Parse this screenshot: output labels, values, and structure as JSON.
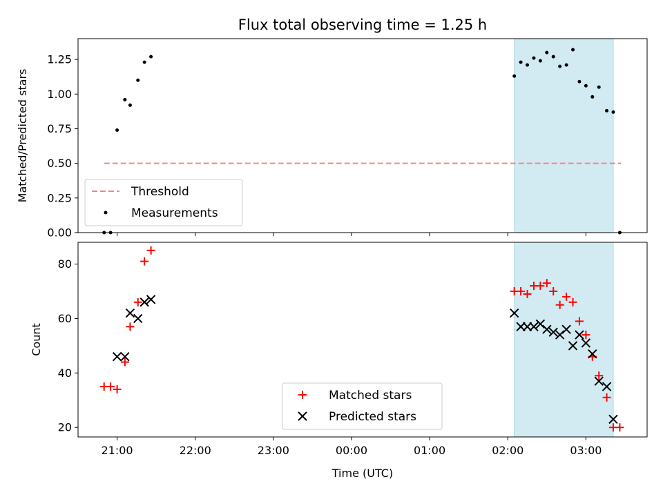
{
  "chart_data": {
    "title": "Flux total observing time = 1.25 h",
    "xlabel": "Time (UTC)",
    "x_axis": {
      "type": "time",
      "range": [
        "2023-01-01T20:30",
        "2023-01-02T03:47"
      ],
      "ticks": [
        "21:00",
        "22:00",
        "23:00",
        "00:00",
        "01:00",
        "02:00",
        "03:00"
      ],
      "tick_times": [
        "2023-01-01T21:00",
        "2023-01-01T22:00",
        "2023-01-01T23:00",
        "2023-01-02T00:00",
        "2023-01-02T01:00",
        "2023-01-02T02:00",
        "2023-01-02T03:00"
      ]
    },
    "shaded_region": {
      "start": "2023-01-02T02:05",
      "end": "2023-01-02T03:21",
      "color": "#add8e6"
    },
    "panels": [
      {
        "name": "ratio",
        "type": "scatter",
        "ylabel": "Matched/Predicted stars",
        "ylim": [
          0,
          1.4
        ],
        "yticks": [
          "0.00",
          "0.25",
          "0.50",
          "0.75",
          "1.00",
          "1.25"
        ],
        "ytick_values": [
          0,
          0.25,
          0.5,
          0.75,
          1.0,
          1.25
        ],
        "threshold": {
          "name": "Threshold",
          "value": 0.5,
          "x_range": [
            "2023-01-01T20:50",
            "2023-01-02T03:27"
          ],
          "color": "#ff7f7f"
        },
        "series": [
          {
            "name": "Measurements",
            "marker": "dot",
            "color": "#000000",
            "points": [
              {
                "x": "2023-01-01T20:50",
                "y": 0.0
              },
              {
                "x": "2023-01-01T20:55",
                "y": 0.0
              },
              {
                "x": "2023-01-01T21:00",
                "y": 0.74
              },
              {
                "x": "2023-01-01T21:06",
                "y": 0.96
              },
              {
                "x": "2023-01-01T21:10",
                "y": 0.92
              },
              {
                "x": "2023-01-01T21:16",
                "y": 1.1
              },
              {
                "x": "2023-01-01T21:21",
                "y": 1.23
              },
              {
                "x": "2023-01-01T21:26",
                "y": 1.27
              },
              {
                "x": "2023-01-02T02:05",
                "y": 1.13
              },
              {
                "x": "2023-01-02T02:10",
                "y": 1.23
              },
              {
                "x": "2023-01-02T02:15",
                "y": 1.21
              },
              {
                "x": "2023-01-02T02:20",
                "y": 1.26
              },
              {
                "x": "2023-01-02T02:25",
                "y": 1.24
              },
              {
                "x": "2023-01-02T02:30",
                "y": 1.3
              },
              {
                "x": "2023-01-02T02:35",
                "y": 1.27
              },
              {
                "x": "2023-01-02T02:40",
                "y": 1.2
              },
              {
                "x": "2023-01-02T02:45",
                "y": 1.21
              },
              {
                "x": "2023-01-02T02:50",
                "y": 1.32
              },
              {
                "x": "2023-01-02T02:55",
                "y": 1.09
              },
              {
                "x": "2023-01-02T03:00",
                "y": 1.06
              },
              {
                "x": "2023-01-02T03:05",
                "y": 0.98
              },
              {
                "x": "2023-01-02T03:10",
                "y": 1.05
              },
              {
                "x": "2023-01-02T03:16",
                "y": 0.88
              },
              {
                "x": "2023-01-02T03:21",
                "y": 0.87
              },
              {
                "x": "2023-01-02T03:26",
                "y": 0.0
              }
            ]
          }
        ],
        "legend": {
          "position": "lower left",
          "entries": [
            "Threshold",
            "Measurements"
          ]
        }
      },
      {
        "name": "count",
        "type": "scatter",
        "ylabel": "Count",
        "ylim": [
          16.5,
          88
        ],
        "yticks": [
          "20",
          "40",
          "60",
          "80"
        ],
        "ytick_values": [
          20,
          40,
          60,
          80
        ],
        "series": [
          {
            "name": "Matched stars",
            "marker": "plus",
            "color": "#ff0000",
            "points": [
              {
                "x": "2023-01-01T20:50",
                "y": 35
              },
              {
                "x": "2023-01-01T20:55",
                "y": 35
              },
              {
                "x": "2023-01-01T21:00",
                "y": 34
              },
              {
                "x": "2023-01-01T21:06",
                "y": 44
              },
              {
                "x": "2023-01-01T21:10",
                "y": 57
              },
              {
                "x": "2023-01-01T21:16",
                "y": 66
              },
              {
                "x": "2023-01-01T21:21",
                "y": 81
              },
              {
                "x": "2023-01-01T21:26",
                "y": 85
              },
              {
                "x": "2023-01-02T02:05",
                "y": 70
              },
              {
                "x": "2023-01-02T02:10",
                "y": 70
              },
              {
                "x": "2023-01-02T02:15",
                "y": 69
              },
              {
                "x": "2023-01-02T02:20",
                "y": 72
              },
              {
                "x": "2023-01-02T02:25",
                "y": 72
              },
              {
                "x": "2023-01-02T02:30",
                "y": 73
              },
              {
                "x": "2023-01-02T02:35",
                "y": 70
              },
              {
                "x": "2023-01-02T02:40",
                "y": 65
              },
              {
                "x": "2023-01-02T02:45",
                "y": 68
              },
              {
                "x": "2023-01-02T02:50",
                "y": 66
              },
              {
                "x": "2023-01-02T02:55",
                "y": 59
              },
              {
                "x": "2023-01-02T03:00",
                "y": 54
              },
              {
                "x": "2023-01-02T03:05",
                "y": 46
              },
              {
                "x": "2023-01-02T03:10",
                "y": 39
              },
              {
                "x": "2023-01-02T03:16",
                "y": 31
              },
              {
                "x": "2023-01-02T03:21",
                "y": 20
              },
              {
                "x": "2023-01-02T03:26",
                "y": 20
              }
            ]
          },
          {
            "name": "Predicted stars",
            "marker": "x",
            "color": "#000000",
            "points": [
              {
                "x": "2023-01-01T21:00",
                "y": 46
              },
              {
                "x": "2023-01-01T21:06",
                "y": 46
              },
              {
                "x": "2023-01-01T21:10",
                "y": 62
              },
              {
                "x": "2023-01-01T21:16",
                "y": 60
              },
              {
                "x": "2023-01-01T21:21",
                "y": 66
              },
              {
                "x": "2023-01-01T21:26",
                "y": 67
              },
              {
                "x": "2023-01-02T02:05",
                "y": 62
              },
              {
                "x": "2023-01-02T02:10",
                "y": 57
              },
              {
                "x": "2023-01-02T02:15",
                "y": 57
              },
              {
                "x": "2023-01-02T02:20",
                "y": 57
              },
              {
                "x": "2023-01-02T02:25",
                "y": 58
              },
              {
                "x": "2023-01-02T02:30",
                "y": 56
              },
              {
                "x": "2023-01-02T02:35",
                "y": 55
              },
              {
                "x": "2023-01-02T02:40",
                "y": 54
              },
              {
                "x": "2023-01-02T02:45",
                "y": 56
              },
              {
                "x": "2023-01-02T02:50",
                "y": 50
              },
              {
                "x": "2023-01-02T02:55",
                "y": 54
              },
              {
                "x": "2023-01-02T03:00",
                "y": 51
              },
              {
                "x": "2023-01-02T03:05",
                "y": 47
              },
              {
                "x": "2023-01-02T03:10",
                "y": 37
              },
              {
                "x": "2023-01-02T03:16",
                "y": 35
              },
              {
                "x": "2023-01-02T03:21",
                "y": 23
              }
            ]
          }
        ],
        "legend": {
          "position": "lower center",
          "entries": [
            "Matched stars",
            "Predicted stars"
          ]
        }
      }
    ]
  }
}
